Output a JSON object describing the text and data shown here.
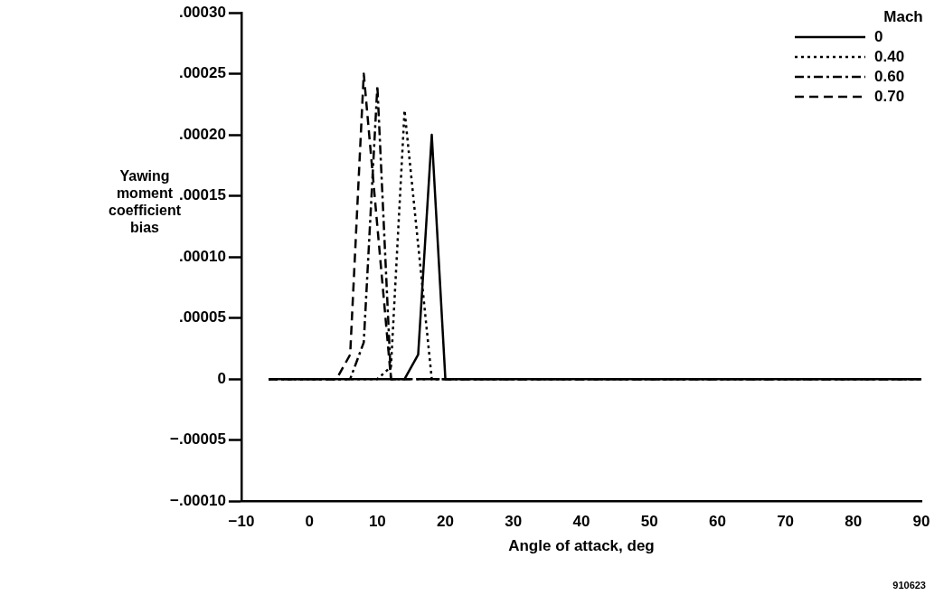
{
  "chart_data": {
    "type": "line",
    "xlabel": "Angle of attack, deg",
    "ylabel": "Yawing\nmoment\ncoefficient\nbias",
    "legend_title": "Mach",
    "legend": "top right",
    "grid": false,
    "marker": "none",
    "xlim": [
      -10,
      90
    ],
    "xticks": [
      -10,
      0,
      10,
      20,
      30,
      40,
      50,
      60,
      70,
      80,
      90
    ],
    "ylim": [
      -0.0001,
      0.0003
    ],
    "yticks": [
      {
        "value": -0.0001,
        "label": "−.00010"
      },
      {
        "value": -5e-05,
        "label": "−.00005"
      },
      {
        "value": 0,
        "label": "0"
      },
      {
        "value": 5e-05,
        "label": ".00005"
      },
      {
        "value": 0.0001,
        "label": ".00010"
      },
      {
        "value": 0.00015,
        "label": ".00015"
      },
      {
        "value": 0.0002,
        "label": ".00020"
      },
      {
        "value": 0.00025,
        "label": ".00025"
      },
      {
        "value": 0.0003,
        "label": ".00030"
      }
    ],
    "series": [
      {
        "name": "0",
        "color": "#000000",
        "line_style": "solid",
        "x": [
          -6,
          14,
          16,
          18,
          20,
          90
        ],
        "values": [
          0,
          0,
          2e-05,
          0.0002,
          0,
          0
        ]
      },
      {
        "name": "0.40",
        "color": "#000000",
        "line_style": "dotted",
        "x": [
          -6,
          10,
          12,
          14,
          18,
          90
        ],
        "values": [
          0,
          0,
          1e-05,
          0.00022,
          0,
          0
        ]
      },
      {
        "name": "0.60",
        "color": "#000000",
        "line_style": "dashdot",
        "x": [
          -6,
          6,
          8,
          10,
          12,
          90
        ],
        "values": [
          0,
          0,
          3e-05,
          0.00024,
          0,
          0
        ]
      },
      {
        "name": "0.70",
        "color": "#000000",
        "line_style": "dashed",
        "x": [
          -6,
          4,
          6,
          8,
          12,
          90
        ],
        "values": [
          0,
          0,
          2e-05,
          0.00025,
          0,
          0
        ]
      }
    ],
    "annotations": [
      "910623"
    ]
  }
}
